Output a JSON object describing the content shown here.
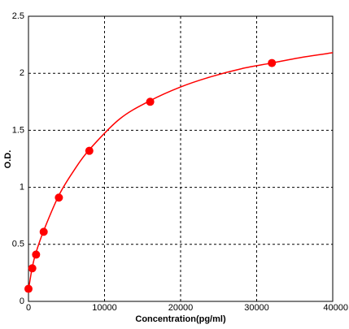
{
  "chart_data": {
    "type": "scatter",
    "x_label": "Concentration(pg/ml)",
    "y_label": "O.D.",
    "x": [
      0,
      500,
      1000,
      2000,
      4000,
      8000,
      16000,
      32000
    ],
    "values": [
      0.11,
      0.29,
      0.41,
      0.61,
      0.91,
      1.32,
      1.75,
      2.09
    ],
    "color": "#ff0000",
    "curve": {
      "x": [
        0,
        500,
        1000,
        2000,
        4000,
        6000,
        8000,
        12000,
        16000,
        20000,
        24000,
        28000,
        32000,
        36000,
        40000
      ],
      "values": [
        0.1,
        0.3,
        0.43,
        0.62,
        0.93,
        1.15,
        1.33,
        1.6,
        1.76,
        1.88,
        1.97,
        2.04,
        2.09,
        2.14,
        2.18
      ]
    },
    "xlim": [
      0,
      40000
    ],
    "xticks": [
      0,
      10000,
      20000,
      30000,
      40000
    ],
    "ylim": [
      0,
      2.5
    ],
    "yticks": [
      0,
      0.5,
      1,
      1.5,
      2,
      2.5
    ],
    "grid": true
  }
}
